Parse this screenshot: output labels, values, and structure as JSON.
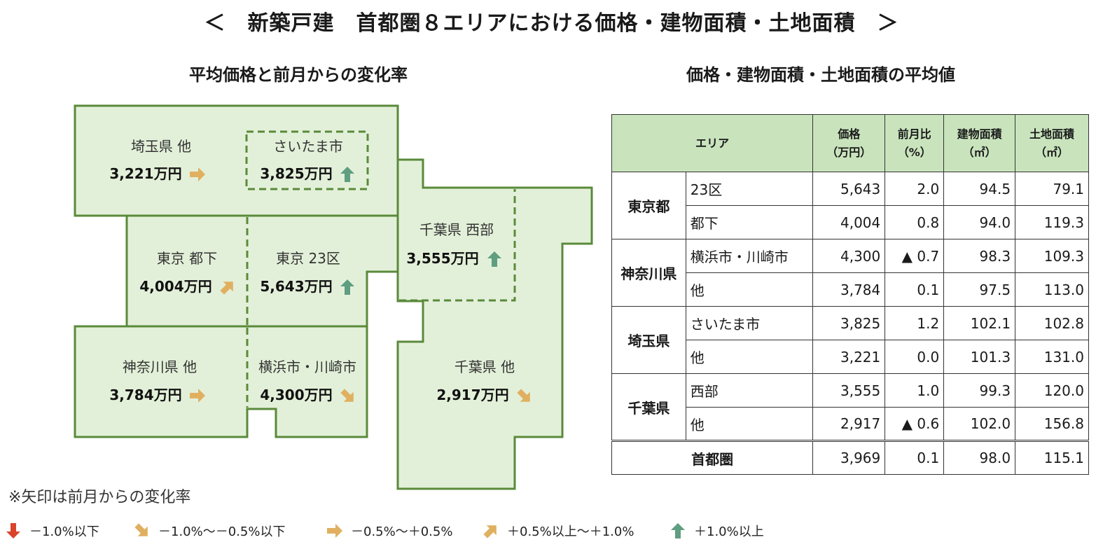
{
  "title": "＜　新築戸建　首都圏８エリアにおける価格・建物面積・土地面積　＞",
  "map_section": {
    "title": "平均価格と前月からの変化率",
    "areas": [
      {
        "name": "埼玉県 他",
        "price": "3,221万円",
        "trend": "flat"
      },
      {
        "name": "さいたま市",
        "price": "3,825万円",
        "trend": "up-strong"
      },
      {
        "name": "東京 都下",
        "price": "4,004万円",
        "trend": "up-mild"
      },
      {
        "name": "東京 23区",
        "price": "5,643万円",
        "trend": "up-strong"
      },
      {
        "name": "千葉県 西部",
        "price": "3,555万円",
        "trend": "up-strong"
      },
      {
        "name": "神奈川県 他",
        "price": "3,784万円",
        "trend": "flat"
      },
      {
        "name": "横浜市・川崎市",
        "price": "4,300万円",
        "trend": "down-mild"
      },
      {
        "name": "千葉県 他",
        "price": "2,917万円",
        "trend": "down-mild"
      }
    ],
    "note": "※矢印は前月からの変化率"
  },
  "table_section": {
    "title": "価格・建物面積・土地面積の平均値",
    "headers": {
      "area": "エリア",
      "price": "価格",
      "price_unit": "（万円）",
      "change": "前月比",
      "change_unit": "（%）",
      "building": "建物面積",
      "building_unit": "（㎡）",
      "land": "土地面積",
      "land_unit": "（㎡）"
    },
    "groups": [
      {
        "name": "東京都",
        "rows": [
          {
            "sub": "23区",
            "price": "5,643",
            "change": "2.0",
            "building": "94.5",
            "land": "79.1"
          },
          {
            "sub": "都下",
            "price": "4,004",
            "change": "0.8",
            "building": "94.0",
            "land": "119.3"
          }
        ]
      },
      {
        "name": "神奈川県",
        "rows": [
          {
            "sub": "横浜市・川崎市",
            "price": "4,300",
            "change": "▲ 0.7",
            "building": "98.3",
            "land": "109.3"
          },
          {
            "sub": "他",
            "price": "3,784",
            "change": "0.1",
            "building": "97.5",
            "land": "113.0"
          }
        ]
      },
      {
        "name": "埼玉県",
        "rows": [
          {
            "sub": "さいたま市",
            "price": "3,825",
            "change": "1.2",
            "building": "102.1",
            "land": "102.8"
          },
          {
            "sub": "他",
            "price": "3,221",
            "change": "0.0",
            "building": "101.3",
            "land": "131.0"
          }
        ]
      },
      {
        "name": "千葉県",
        "rows": [
          {
            "sub": "西部",
            "price": "3,555",
            "change": "1.0",
            "building": "99.3",
            "land": "120.0"
          },
          {
            "sub": "他",
            "price": "2,917",
            "change": "▲ 0.6",
            "building": "102.0",
            "land": "156.8"
          }
        ]
      }
    ],
    "total": {
      "name": "首都圏",
      "price": "3,969",
      "change": "0.1",
      "building": "98.0",
      "land": "115.1"
    }
  },
  "legend": [
    {
      "label": "－1.0%以下",
      "icon": "arrow-down-icon",
      "color": "#d9442a"
    },
    {
      "label": "－1.0%～－0.5%以下",
      "icon": "arrow-down-right-icon",
      "color": "#e0b060"
    },
    {
      "label": "－0.5%～＋0.5%",
      "icon": "arrow-right-icon",
      "color": "#e0b060"
    },
    {
      "label": "＋0.5%以上～＋1.0%",
      "icon": "arrow-up-right-icon",
      "color": "#e0b060"
    },
    {
      "label": "＋1.0%以上",
      "icon": "arrow-up-icon",
      "color": "#5f9e80"
    }
  ],
  "colors": {
    "map_fill": "#e3f0d9",
    "map_stroke": "#5a8a3a",
    "header_fill": "#c9e4bd",
    "arrow_up": "#5f9e80",
    "arrow_mid": "#e0b060",
    "arrow_down": "#d9442a"
  }
}
